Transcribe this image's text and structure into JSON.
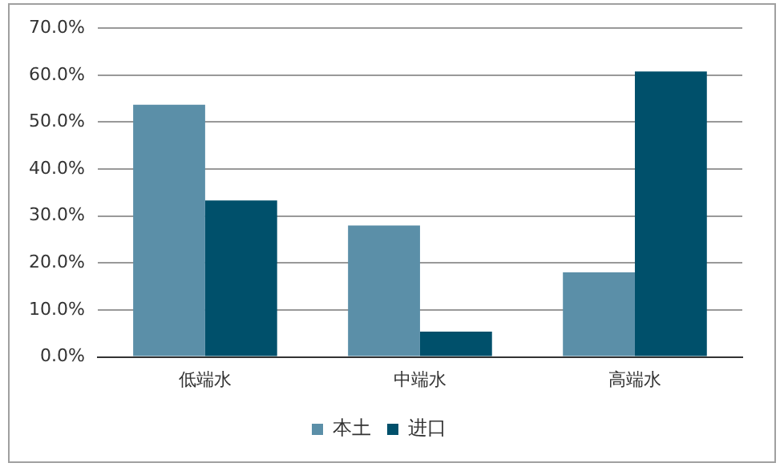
{
  "chart_data": {
    "type": "bar",
    "categories": [
      "低端水",
      "中端水",
      "高端水"
    ],
    "series": [
      {
        "name": "本土",
        "color": "#5b8fa8",
        "values": [
          53.7,
          28.0,
          18.0
        ]
      },
      {
        "name": "进口",
        "color": "#00506b",
        "values": [
          33.3,
          5.4,
          60.8
        ]
      }
    ],
    "ylim": [
      0,
      70
    ],
    "yticks": [
      {
        "value": 0,
        "label": "0.0%"
      },
      {
        "value": 10,
        "label": "10.0%"
      },
      {
        "value": 20,
        "label": "20.0%"
      },
      {
        "value": 30,
        "label": "30.0%"
      },
      {
        "value": 40,
        "label": "40.0%"
      },
      {
        "value": 50,
        "label": "50.0%"
      },
      {
        "value": 60,
        "label": "60.0%"
      },
      {
        "value": 70,
        "label": "70.0%"
      }
    ],
    "grid": "y",
    "legend": "bottom"
  }
}
